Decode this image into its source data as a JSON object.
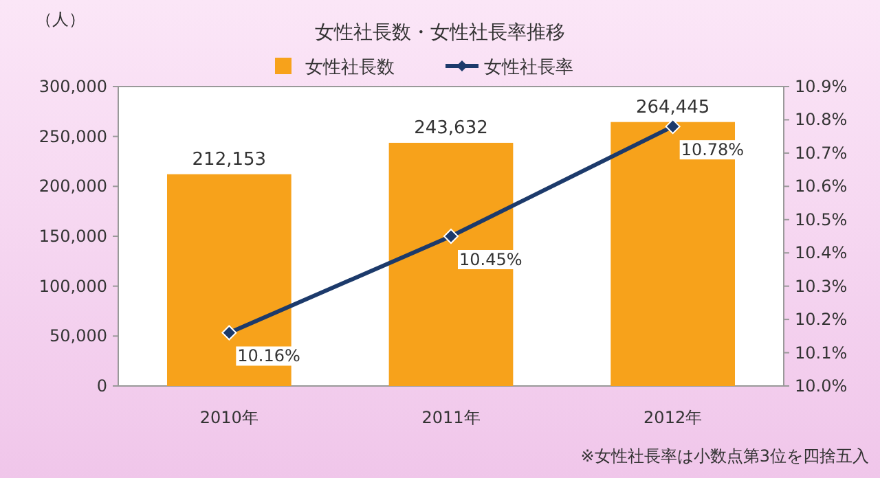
{
  "chart_data": {
    "type": "bar",
    "title": "女性社長数・女性社長率推移",
    "ylabel": "（人）",
    "categories": [
      "2010年",
      "2011年",
      "2012年"
    ],
    "series": [
      {
        "name": "女性社長数",
        "color": "#f7a21b",
        "values": [
          212153,
          243632,
          264445
        ],
        "value_labels": [
          "212,153",
          "243,632",
          "264,445"
        ]
      },
      {
        "name": "女性社長率",
        "type": "line",
        "axis": "y2",
        "color": "#1c3a6b",
        "marker": "diamond",
        "values": [
          10.16,
          10.45,
          10.78
        ],
        "value_labels": [
          "10.16%",
          "10.45%",
          "10.78%"
        ]
      }
    ],
    "ylim": [
      0,
      300000
    ],
    "yticks": [
      {
        "value": 0,
        "label": "0"
      },
      {
        "value": 50000,
        "label": "50,000"
      },
      {
        "value": 100000,
        "label": "100,000"
      },
      {
        "value": 150000,
        "label": "150,000"
      },
      {
        "value": 200000,
        "label": "200,000"
      },
      {
        "value": 250000,
        "label": "250,000"
      },
      {
        "value": 300000,
        "label": "300,000"
      }
    ],
    "y2lim": [
      10.0,
      10.9
    ],
    "y2ticks": [
      {
        "value": 10.0,
        "label": "10.0%"
      },
      {
        "value": 10.1,
        "label": "10.1%"
      },
      {
        "value": 10.2,
        "label": "10.2%"
      },
      {
        "value": 10.3,
        "label": "10.3%"
      },
      {
        "value": 10.4,
        "label": "10.4%"
      },
      {
        "value": 10.5,
        "label": "10.5%"
      },
      {
        "value": 10.6,
        "label": "10.6%"
      },
      {
        "value": 10.7,
        "label": "10.7%"
      },
      {
        "value": 10.8,
        "label": "10.8%"
      },
      {
        "value": 10.9,
        "label": "10.9%"
      }
    ],
    "legend": "top",
    "annotations": [
      "※女性社長率は小数点第3位を四捨五入"
    ]
  }
}
